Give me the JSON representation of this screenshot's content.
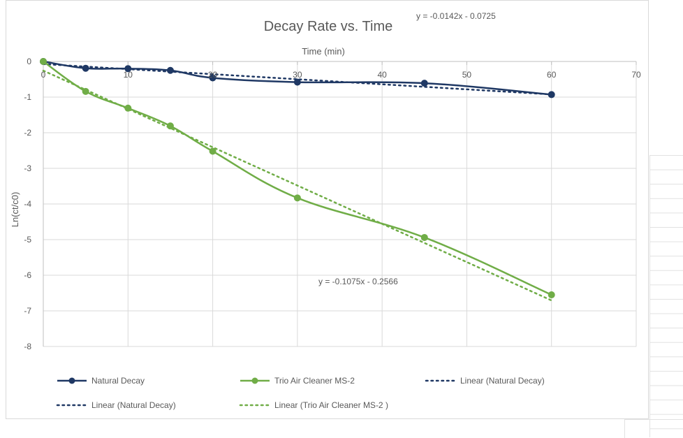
{
  "chart_data": {
    "type": "line",
    "title": "Decay Rate vs. Time",
    "xlabel": "Time (min)",
    "ylabel": "Ln(ct/c0)",
    "xlim": [
      0,
      70
    ],
    "ylim": [
      -8,
      0
    ],
    "x_ticks": [
      0,
      10,
      20,
      30,
      40,
      50,
      60,
      70
    ],
    "y_ticks": [
      0,
      -1,
      -2,
      -3,
      -4,
      -5,
      -6,
      -7,
      -8
    ],
    "grid": true,
    "legend_position": "bottom",
    "series": [
      {
        "name": "Natural Decay",
        "color": "#1f3864",
        "marker": "circle",
        "x": [
          0,
          5,
          10,
          15,
          20,
          30,
          45,
          60
        ],
        "y": [
          0,
          -0.19,
          -0.2,
          -0.25,
          -0.46,
          -0.58,
          -0.61,
          -0.93
        ]
      },
      {
        "name": "Trio Air Cleaner MS-2",
        "color": "#70ad47",
        "marker": "circle",
        "x": [
          0,
          5,
          10,
          15,
          20,
          30,
          45,
          60
        ],
        "y": [
          0,
          -0.84,
          -1.31,
          -1.81,
          -2.52,
          -3.83,
          -4.94,
          -6.55
        ]
      }
    ],
    "trendlines": [
      {
        "of": "Natural Decay",
        "label": "Linear (Natural Decay)",
        "color": "#1f3864",
        "slope": -0.0142,
        "intercept": -0.0725,
        "equation": "y = -0.0142x  - 0.0725"
      },
      {
        "of": "Trio Air Cleaner MS-2",
        "label": "Linear (Trio Air Cleaner MS-2 )",
        "color": "#70ad47",
        "slope": -0.1075,
        "intercept": -0.2566,
        "equation": "y = -0.1075x  - 0.2566"
      }
    ],
    "legend": [
      "Natural Decay",
      "Trio Air Cleaner MS-2",
      "Linear (Natural Decay)",
      "Linear (Natural Decay)",
      "Linear (Trio Air Cleaner MS-2 )"
    ]
  }
}
